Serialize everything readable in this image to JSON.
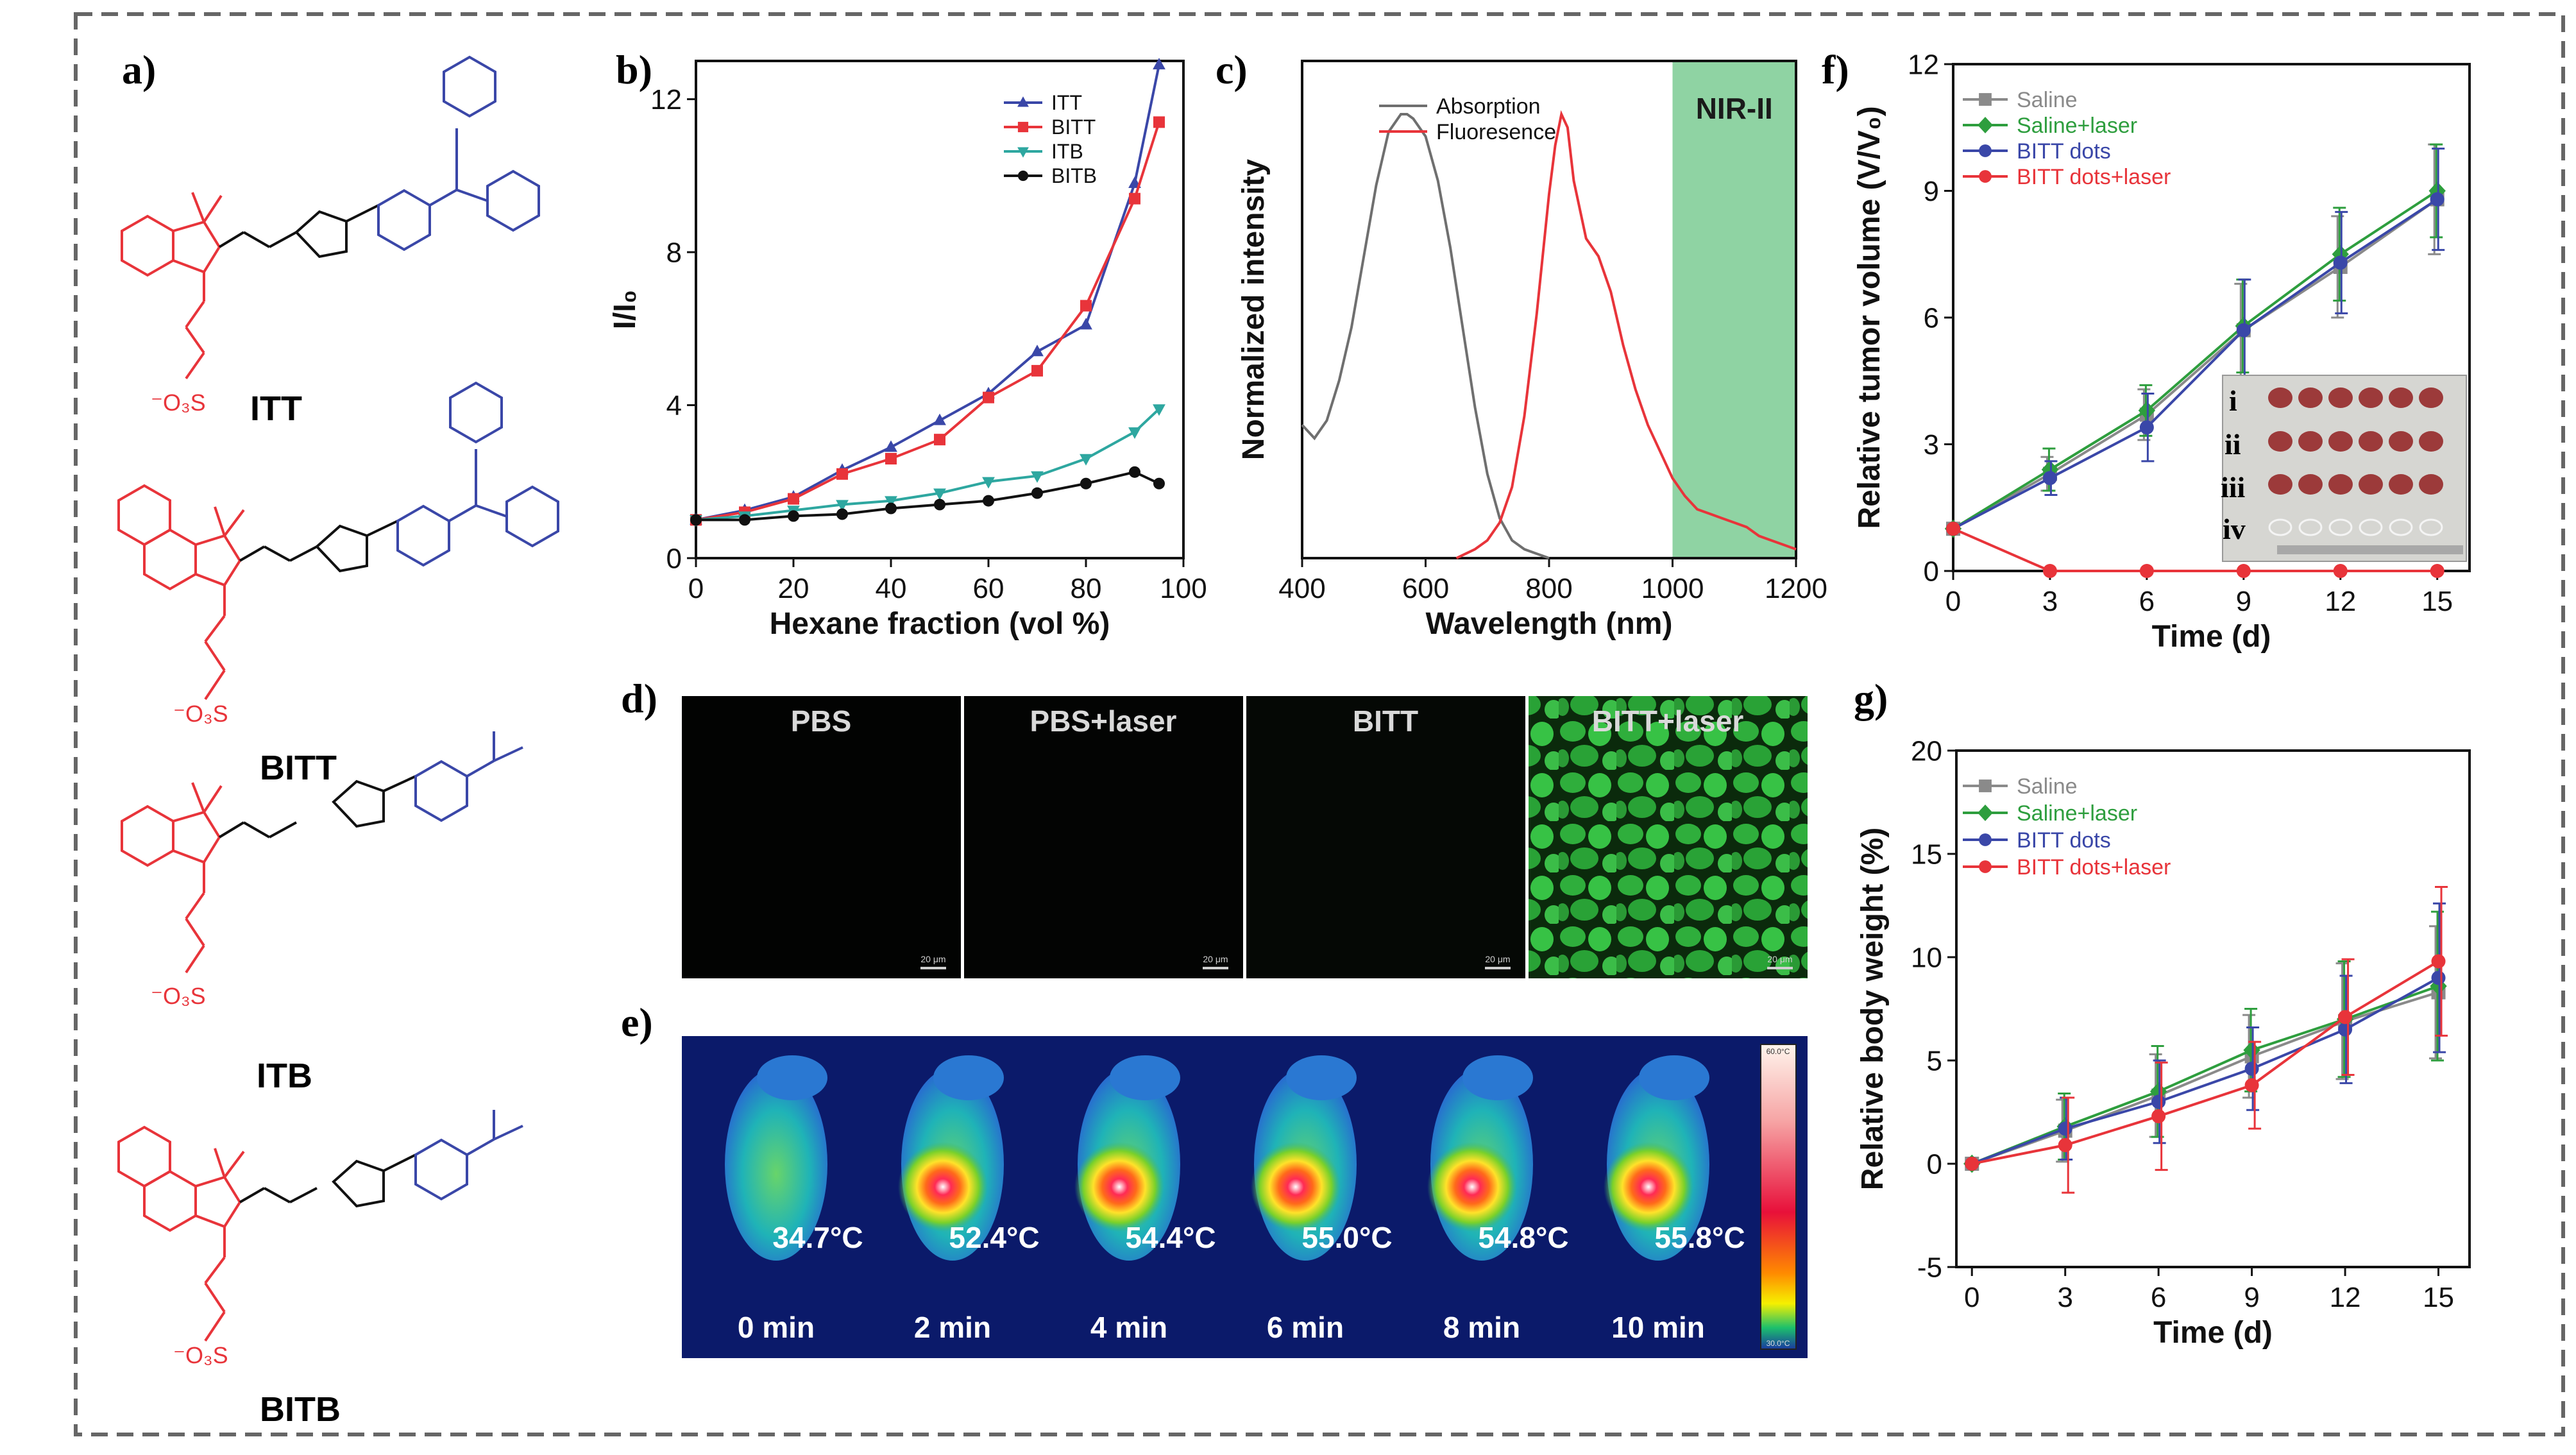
{
  "panel_labels": {
    "a": "a)",
    "b": "b)",
    "c": "c)",
    "d": "d)",
    "e": "e)",
    "f": "f)",
    "g": "g)"
  },
  "molecules": [
    {
      "name": "ITT",
      "anion": "⁻O₃S"
    },
    {
      "name": "BITT",
      "anion": "⁻O₃S"
    },
    {
      "name": "ITB",
      "anion": "⁻O₃S"
    },
    {
      "name": "BITB",
      "anion": "⁻O₃S"
    }
  ],
  "colors": {
    "red": "#e8343a",
    "blue": "#3a47a8",
    "green": "#2e9e3e",
    "teal": "#2ea7a0",
    "black": "#111111",
    "gray": "#8a8a8a",
    "nir_band": "#8fd3a3"
  },
  "chart_data": [
    {
      "id": "b",
      "type": "line",
      "xlabel": "Hexane fraction (vol %)",
      "ylabel": "I/I₀",
      "xlim": [
        0,
        100
      ],
      "ylim": [
        0,
        13
      ],
      "xticks": [
        0,
        20,
        40,
        60,
        80,
        100
      ],
      "yticks": [
        0,
        4,
        8,
        12
      ],
      "legend": "top-right",
      "x": [
        0,
        10,
        20,
        30,
        40,
        50,
        60,
        70,
        80,
        90,
        95
      ],
      "series": [
        {
          "name": "ITT",
          "color": "#3a47a8",
          "marker": "triangle-up",
          "values": [
            1.0,
            1.25,
            1.6,
            2.3,
            2.9,
            3.6,
            4.3,
            5.4,
            6.1,
            9.8,
            12.9
          ]
        },
        {
          "name": "BITT",
          "color": "#e8343a",
          "marker": "square",
          "values": [
            1.0,
            1.2,
            1.55,
            2.2,
            2.6,
            3.1,
            4.2,
            4.9,
            6.6,
            9.4,
            11.4
          ]
        },
        {
          "name": "ITB",
          "color": "#2ea7a0",
          "marker": "triangle-down",
          "values": [
            1.0,
            1.1,
            1.25,
            1.4,
            1.5,
            1.7,
            2.0,
            2.15,
            2.6,
            3.3,
            3.9
          ]
        },
        {
          "name": "BITB",
          "color": "#111111",
          "marker": "circle",
          "values": [
            1.0,
            1.0,
            1.1,
            1.15,
            1.3,
            1.4,
            1.5,
            1.7,
            1.95,
            2.25,
            1.95
          ]
        }
      ]
    },
    {
      "id": "c",
      "type": "line",
      "xlabel": "Wavelength (nm)",
      "ylabel": "Normalized intensity",
      "xlim": [
        400,
        1200
      ],
      "ylim": [
        0,
        1.12
      ],
      "xticks": [
        400,
        600,
        800,
        1000,
        1200
      ],
      "band": {
        "from": 1000,
        "to": 1200,
        "label": "NIR-II"
      },
      "legend": "top-left",
      "series": [
        {
          "name": "Absorption",
          "color": "#6f6f6f",
          "x": [
            400,
            420,
            440,
            460,
            480,
            500,
            520,
            540,
            560,
            570,
            580,
            600,
            620,
            640,
            660,
            680,
            700,
            720,
            740,
            760,
            780,
            800
          ],
          "values": [
            0.3,
            0.27,
            0.31,
            0.4,
            0.52,
            0.68,
            0.84,
            0.96,
            1.0,
            1.0,
            0.99,
            0.95,
            0.85,
            0.7,
            0.52,
            0.34,
            0.19,
            0.09,
            0.04,
            0.02,
            0.01,
            0.0
          ]
        },
        {
          "name": "Fluoresence",
          "color": "#e8343a",
          "x": [
            650,
            680,
            700,
            720,
            740,
            760,
            780,
            800,
            810,
            820,
            830,
            840,
            860,
            880,
            900,
            920,
            940,
            960,
            980,
            1000,
            1020,
            1040,
            1060,
            1080,
            1100,
            1120,
            1140,
            1160,
            1180,
            1200
          ],
          "values": [
            0.0,
            0.02,
            0.04,
            0.08,
            0.16,
            0.32,
            0.55,
            0.82,
            0.93,
            1.0,
            0.97,
            0.85,
            0.72,
            0.68,
            0.6,
            0.48,
            0.38,
            0.3,
            0.24,
            0.18,
            0.14,
            0.11,
            0.1,
            0.09,
            0.08,
            0.07,
            0.05,
            0.04,
            0.03,
            0.02
          ]
        }
      ]
    },
    {
      "id": "f",
      "type": "line",
      "xlabel": "Time (d)",
      "ylabel": "Relative tumor volume (V/V₀)",
      "xlim": [
        0,
        16
      ],
      "ylim": [
        0,
        12
      ],
      "xticks": [
        0,
        3,
        6,
        9,
        12,
        15
      ],
      "yticks": [
        0,
        3,
        6,
        9,
        12
      ],
      "legend": "top-left",
      "x": [
        0,
        3,
        6,
        9,
        12,
        15
      ],
      "series": [
        {
          "name": "Saline",
          "color": "#8a8a8a",
          "marker": "square",
          "values": [
            1.0,
            2.3,
            3.7,
            5.7,
            7.2,
            8.8
          ],
          "err": [
            0,
            0.4,
            0.6,
            1.1,
            1.2,
            1.3
          ]
        },
        {
          "name": "Saline+laser",
          "color": "#2e9e3e",
          "marker": "diamond",
          "values": [
            1.0,
            2.4,
            3.8,
            5.8,
            7.5,
            9.0
          ],
          "err": [
            0,
            0.5,
            0.6,
            1.1,
            1.1,
            1.1
          ]
        },
        {
          "name": "BITT dots",
          "color": "#3a47a8",
          "marker": "circle",
          "values": [
            1.0,
            2.2,
            3.4,
            5.7,
            7.3,
            8.8
          ],
          "err": [
            0,
            0.4,
            0.8,
            1.2,
            1.2,
            1.2
          ]
        },
        {
          "name": "BITT dots+laser",
          "color": "#e8343a",
          "marker": "circle",
          "values": [
            1.0,
            0.0,
            0.0,
            0.0,
            0.0,
            0.0
          ],
          "err": [
            0,
            0,
            0,
            0,
            0,
            0
          ]
        }
      ]
    },
    {
      "id": "g",
      "type": "line",
      "xlabel": "Time (d)",
      "ylabel": "Relative body weight (%)",
      "xlim": [
        -0.5,
        16
      ],
      "ylim": [
        -5,
        20
      ],
      "xticks": [
        0,
        3,
        6,
        9,
        12,
        15
      ],
      "yticks": [
        -5,
        0,
        5,
        10,
        15,
        20
      ],
      "legend": "top-left",
      "x": [
        0,
        3,
        6,
        9,
        12,
        15
      ],
      "series": [
        {
          "name": "Saline",
          "color": "#8a8a8a",
          "marker": "square",
          "values": [
            0.0,
            1.6,
            3.3,
            5.2,
            6.9,
            8.3
          ],
          "err": [
            0,
            1.5,
            2.0,
            2.0,
            2.8,
            3.2
          ]
        },
        {
          "name": "Saline+laser",
          "color": "#2e9e3e",
          "marker": "diamond",
          "values": [
            0.0,
            1.8,
            3.5,
            5.5,
            7.0,
            8.6
          ],
          "err": [
            0,
            1.6,
            2.2,
            2.0,
            2.8,
            3.6
          ]
        },
        {
          "name": "BITT dots",
          "color": "#3a47a8",
          "marker": "circle",
          "values": [
            0.0,
            1.7,
            3.0,
            4.6,
            6.5,
            9.0
          ],
          "err": [
            0,
            1.5,
            2.0,
            2.0,
            2.6,
            3.6
          ]
        },
        {
          "name": "BITT dots+laser",
          "color": "#e8343a",
          "marker": "circle",
          "values": [
            0.0,
            0.9,
            2.3,
            3.8,
            7.1,
            9.8
          ],
          "err": [
            0,
            2.3,
            2.6,
            2.1,
            2.8,
            3.6
          ]
        }
      ]
    }
  ],
  "f_inset": {
    "rows": [
      "i",
      "ii",
      "iii",
      "iv"
    ]
  },
  "micrographs": {
    "labels": [
      "PBS",
      "PBS+laser",
      "BITT",
      "BITT+laser"
    ],
    "scale": "20 μm"
  },
  "thermal": {
    "temps": [
      "34.7°C",
      "52.4°C",
      "54.4°C",
      "55.0°C",
      "54.8°C",
      "55.8°C"
    ],
    "times": [
      "0 min",
      "2 min",
      "4 min",
      "6 min",
      "8 min",
      "10 min"
    ],
    "scale_max": "60.0°C",
    "scale_min": "30.0°C"
  }
}
